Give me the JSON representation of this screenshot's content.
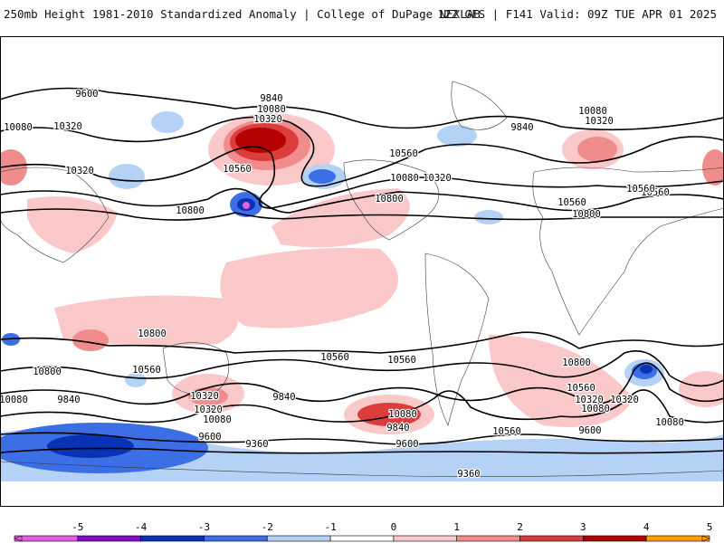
{
  "header": {
    "title": "250mb Height 1981-2010 Standardized Anomaly | College of DuPage NEXLAB",
    "run_info": "12Z GFS | F141 Valid: 09Z TUE APR 01 2025"
  },
  "colors": {
    "neg5": "#e060e0",
    "neg4": "#8010c0",
    "neg3": "#0a32b4",
    "neg2": "#3c6ee6",
    "neg1": "#b4d2f5",
    "zero": "#ffffff",
    "pos1": "#fac8c8",
    "pos2": "#f08c8c",
    "pos3": "#dc3c3c",
    "pos4": "#b40000",
    "pos5": "#ffa000",
    "contour": "#000000",
    "land_outline": "#3a3a3a"
  },
  "colorbar": {
    "ticks": [
      "-5",
      "-4",
      "-3",
      "-2",
      "-1",
      "0",
      "1",
      "2",
      "3",
      "4",
      "5"
    ],
    "values": [
      -5,
      -4,
      -3,
      -2,
      -1,
      0,
      1,
      2,
      3,
      4,
      5
    ]
  },
  "contour_labels": [
    "9600",
    "9840",
    "10080",
    "10320",
    "10080",
    "10560",
    "10320",
    "10800",
    "9840",
    "10080",
    "10320",
    "10560",
    "10800",
    "10080",
    "10320",
    "10560",
    "10800",
    "10800",
    "10560",
    "9840",
    "10560",
    "10320",
    "10080",
    "9600",
    "9360",
    "9840",
    "10800",
    "10560",
    "10320",
    "10080",
    "9600",
    "10800",
    "10560",
    "10320",
    "10080",
    "9840",
    "9600",
    "9360",
    "10560",
    "10320",
    "10080",
    "10560",
    "10080",
    "10320",
    "10560"
  ]
}
